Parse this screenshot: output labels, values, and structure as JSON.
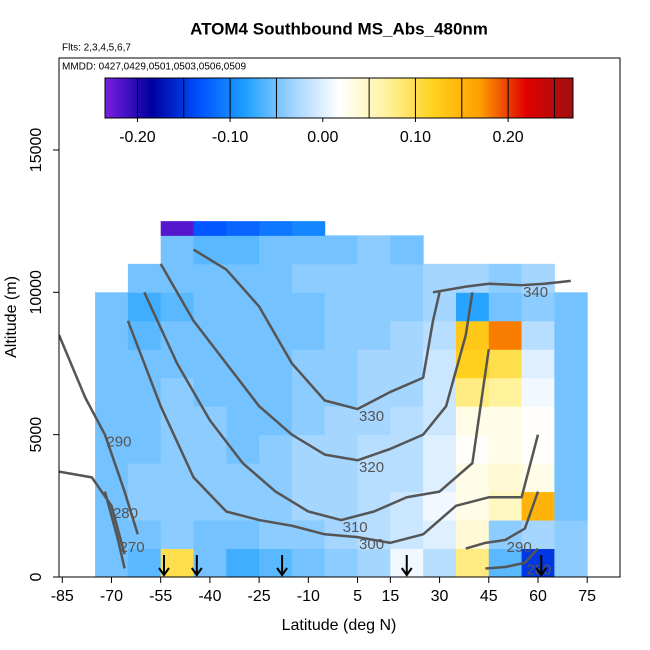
{
  "chart_data": {
    "type": "heatmap",
    "title": "ATOM4 Southbound MS_Abs_480nm",
    "subtitle": "Flts: 2,3,4,5,6,7",
    "annotation": "MMDD: 0427,0429,0501,0503,0506,0509",
    "xlabel": "Latitude (deg N)",
    "ylabel": "Altitude (m)",
    "xlim": [
      -86,
      85
    ],
    "xticks": [
      -85,
      -70,
      -55,
      -40,
      -25,
      -10,
      5,
      15,
      30,
      45,
      60,
      75
    ],
    "ylim": [
      0,
      18230
    ],
    "yticks": [
      0,
      5000,
      10000,
      15000
    ],
    "x_edges": [
      -75,
      -65,
      -55,
      -45,
      -35,
      -25,
      -15,
      -5,
      5,
      15,
      25,
      35,
      45,
      55,
      65,
      75
    ],
    "y_edges": [
      0,
      1000,
      2000,
      3000,
      4000,
      5000,
      6000,
      7000,
      8000,
      9000,
      10000,
      11000,
      12000,
      12500
    ],
    "values": [
      [
        -0.05,
        -0.06,
        0.1,
        -0.05,
        -0.07,
        -0.06,
        -0.05,
        -0.04,
        -0.03,
        0.01,
        -0.02,
        0.08,
        -0.06,
        -0.15,
        -0.04
      ],
      [
        -0.05,
        -0.05,
        -0.04,
        -0.05,
        -0.05,
        -0.04,
        -0.04,
        -0.03,
        -0.02,
        -0.01,
        0.0,
        0.04,
        -0.04,
        -0.03,
        -0.04
      ],
      [
        -0.05,
        -0.04,
        -0.04,
        -0.04,
        -0.04,
        -0.04,
        -0.03,
        -0.03,
        -0.02,
        -0.01,
        0.01,
        0.03,
        0.05,
        0.15,
        -0.05
      ],
      [
        -0.05,
        -0.04,
        -0.04,
        -0.04,
        -0.04,
        -0.04,
        -0.03,
        -0.03,
        -0.02,
        -0.02,
        0.0,
        0.03,
        0.04,
        0.03,
        -0.05
      ],
      [
        -0.05,
        -0.05,
        -0.04,
        -0.04,
        -0.05,
        -0.04,
        -0.03,
        -0.03,
        -0.02,
        -0.02,
        0.0,
        0.02,
        0.03,
        0.02,
        -0.05
      ],
      [
        -0.05,
        -0.05,
        -0.04,
        -0.04,
        -0.05,
        -0.05,
        -0.04,
        -0.03,
        -0.03,
        -0.02,
        -0.01,
        0.03,
        0.03,
        0.02,
        -0.05
      ],
      [
        -0.05,
        -0.05,
        -0.04,
        -0.05,
        -0.05,
        -0.05,
        -0.04,
        -0.04,
        -0.03,
        -0.03,
        -0.01,
        0.08,
        0.07,
        0.01,
        -0.05
      ],
      [
        -0.05,
        -0.05,
        -0.05,
        -0.05,
        -0.05,
        -0.05,
        -0.04,
        -0.04,
        -0.03,
        -0.03,
        -0.01,
        0.12,
        0.1,
        0.0,
        -0.05
      ],
      [
        -0.05,
        -0.06,
        -0.05,
        -0.05,
        -0.05,
        -0.05,
        -0.05,
        -0.04,
        -0.04,
        -0.03,
        -0.02,
        0.13,
        0.18,
        -0.02,
        -0.05
      ],
      [
        -0.05,
        -0.07,
        -0.06,
        -0.05,
        -0.05,
        -0.05,
        -0.05,
        -0.04,
        -0.04,
        -0.04,
        -0.03,
        -0.08,
        -0.05,
        -0.04,
        -0.05
      ],
      [
        null,
        -0.05,
        -0.05,
        -0.05,
        -0.05,
        -0.05,
        -0.04,
        -0.04,
        -0.04,
        -0.04,
        -0.03,
        -0.03,
        -0.04,
        -0.03,
        null
      ],
      [
        null,
        null,
        -0.05,
        -0.06,
        -0.06,
        -0.05,
        -0.05,
        -0.05,
        -0.04,
        -0.05,
        null,
        null,
        null,
        null,
        null
      ],
      [
        null,
        null,
        -0.22,
        -0.13,
        -0.12,
        -0.11,
        -0.1,
        null,
        null,
        null,
        null,
        null,
        null,
        null,
        null
      ]
    ],
    "colorbar": {
      "lim": [
        -0.235,
        0.27
      ],
      "ticks": [
        {
          "value": -0.2,
          "label": "-0.20"
        },
        {
          "value": -0.1,
          "label": "-0.10"
        },
        {
          "value": 0,
          "label": "0.00"
        },
        {
          "value": 0.1,
          "label": "0.10"
        },
        {
          "value": 0.2,
          "label": "0.20"
        }
      ],
      "breaks": [
        -0.2,
        -0.15,
        -0.1,
        -0.05,
        0.05,
        0.1,
        0.15,
        0.2,
        0.25
      ],
      "colors": [
        "#7a1fe0",
        "#0000a0",
        "#0050ff",
        "#1ea0ff",
        "#9fd3ff",
        "#ffffff",
        "#fff3a0",
        "#ffd21e",
        "#ffa000",
        "#e00000",
        "#a01010"
      ]
    },
    "contour_color": "#555555",
    "contours": [
      {
        "label": 340,
        "lat": [
          28,
          38,
          45,
          55,
          62,
          70
        ],
        "alt": [
          10000,
          10200,
          10300,
          10250,
          10300,
          10400
        ]
      },
      {
        "label": 330,
        "lat": [
          -45,
          -35,
          -25,
          -15,
          -5,
          5,
          15,
          25,
          28,
          30
        ],
        "alt": [
          11500,
          10800,
          9500,
          7500,
          6200,
          5900,
          6500,
          7000,
          9000,
          10000
        ]
      },
      {
        "label": 320,
        "lat": [
          -55,
          -45,
          -35,
          -25,
          -15,
          -5,
          5,
          15,
          25,
          32,
          38,
          40
        ],
        "alt": [
          11000,
          9000,
          7500,
          6000,
          5000,
          4300,
          4100,
          4500,
          5000,
          6000,
          8500,
          10000
        ]
      },
      {
        "label": 310,
        "lat": [
          -60,
          -50,
          -40,
          -30,
          -20,
          -10,
          0,
          10,
          20,
          30,
          40,
          45
        ],
        "alt": [
          10000,
          7500,
          5500,
          4000,
          3000,
          2300,
          2000,
          2300,
          2800,
          3000,
          4000,
          8000
        ]
      },
      {
        "label": 300,
        "lat": [
          -65,
          -55,
          -45,
          -35,
          -25,
          -15,
          -5,
          5,
          15,
          25,
          35,
          45,
          55,
          60
        ],
        "alt": [
          9000,
          6000,
          3500,
          2300,
          2000,
          1800,
          1500,
          1400,
          1200,
          1500,
          2500,
          2800,
          2800,
          5000
        ]
      },
      {
        "label": 290,
        "lat": [
          -86,
          -78,
          -72,
          -66,
          -62
        ],
        "alt": [
          8500,
          6300,
          5000,
          3000,
          1500
        ]
      },
      {
        "label": 280,
        "lat": [
          -86,
          -76,
          -70,
          -66
        ],
        "alt": [
          3700,
          3500,
          2500,
          800
        ]
      },
      {
        "label": 270,
        "lat": [
          -72,
          -68,
          -66
        ],
        "alt": [
          3000,
          1300,
          300
        ]
      },
      {
        "label": 290,
        "lat": [
          38,
          44,
          50,
          56,
          60
        ],
        "alt": [
          1000,
          1200,
          1300,
          1700,
          3000
        ]
      },
      {
        "label": 280,
        "lat": [
          44,
          50,
          56,
          60
        ],
        "alt": [
          300,
          350,
          500,
          1000
        ]
      }
    ],
    "arrows_lat": [
      -54,
      -44,
      -18,
      20,
      61
    ]
  }
}
